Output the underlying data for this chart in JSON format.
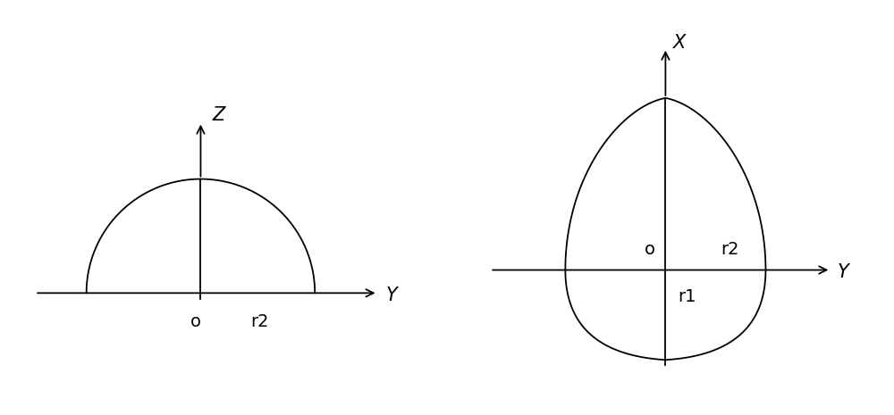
{
  "bg_color": "#ffffff",
  "line_color": "#000000",
  "fig_width": 10.0,
  "fig_height": 4.65,
  "left_panel": {
    "x_axis_label": "Y",
    "y_axis_label": "Z",
    "o_label": "o",
    "r2_label": "r2"
  },
  "right_panel": {
    "x_axis_label": "Y",
    "y_axis_label": "X",
    "o_label": "o",
    "r1_label": "r1",
    "r2_label": "r2"
  }
}
